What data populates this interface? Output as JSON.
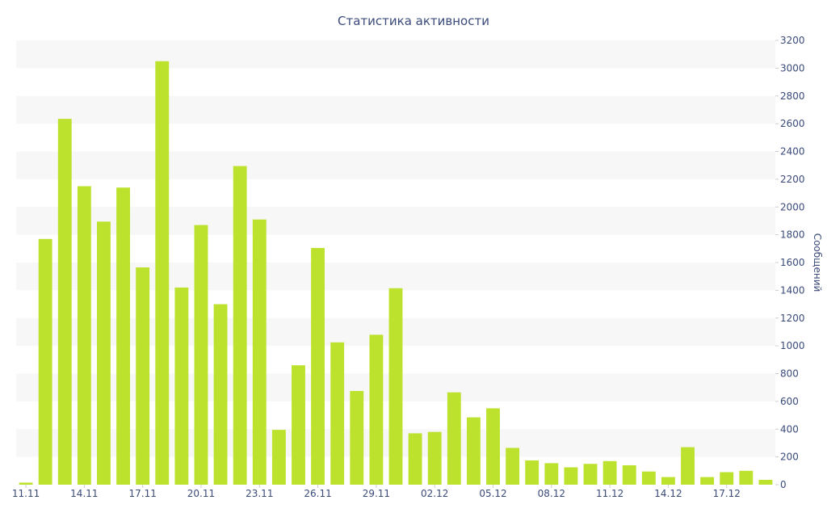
{
  "chart_data": {
    "type": "bar",
    "title": "Статистика активности",
    "xlabel": "",
    "ylabel": "Сообщений",
    "y_axis_side": "right",
    "ylim": [
      0,
      3200
    ],
    "y_ticks": [
      0,
      200,
      400,
      600,
      800,
      1000,
      1200,
      1400,
      1600,
      1800,
      2000,
      2200,
      2400,
      2600,
      2800,
      3000,
      3200
    ],
    "x_tick_labels": [
      "11.11",
      "14.11",
      "17.11",
      "20.11",
      "23.11",
      "26.11",
      "29.11",
      "02.12",
      "05.12",
      "08.12",
      "11.12",
      "14.12",
      "17.12"
    ],
    "x_tick_every": 3,
    "bar_color": "#bde22e",
    "band_color": "#f7f7f7",
    "grid": "horizontal bands",
    "legend": "none",
    "categories": [
      "11.11",
      "12.11",
      "13.11",
      "14.11",
      "15.11",
      "16.11",
      "17.11",
      "18.11",
      "19.11",
      "20.11",
      "21.11",
      "22.11",
      "23.11",
      "24.11",
      "25.11",
      "26.11",
      "27.11",
      "28.11",
      "29.11",
      "30.11",
      "01.12",
      "02.12",
      "03.12",
      "04.12",
      "05.12",
      "06.12",
      "07.12",
      "08.12",
      "09.12",
      "10.12",
      "11.12",
      "12.12",
      "13.12",
      "14.12",
      "15.12",
      "16.12",
      "17.12",
      "18.12",
      "19.12"
    ],
    "values": [
      15,
      1770,
      2635,
      2150,
      1895,
      2140,
      1565,
      3050,
      1420,
      1870,
      1300,
      2295,
      1910,
      395,
      860,
      1705,
      1025,
      675,
      1080,
      1415,
      370,
      380,
      665,
      485,
      550,
      265,
      175,
      155,
      125,
      150,
      170,
      140,
      95,
      55,
      270,
      55,
      90,
      100,
      35
    ]
  }
}
